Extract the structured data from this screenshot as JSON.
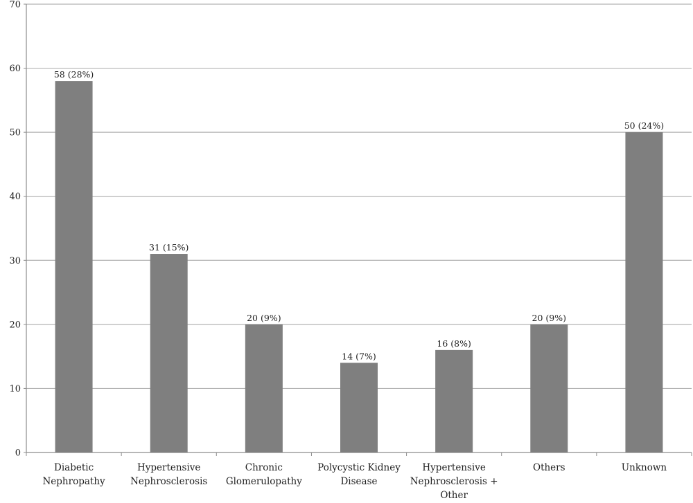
{
  "chart_data": {
    "type": "bar",
    "categories": [
      [
        "Diabetic",
        "Nephropathy"
      ],
      [
        "Hypertensive",
        "Nephrosclerosis"
      ],
      [
        "Chronic",
        "Glomerulopathy"
      ],
      [
        "Polycystic Kidney",
        "Disease"
      ],
      [
        "Hypertensive",
        "Nephrosclerosis +",
        "Other"
      ],
      [
        "Others"
      ],
      [
        "Unknown"
      ]
    ],
    "values": [
      58,
      31,
      20,
      14,
      16,
      20,
      50
    ],
    "data_labels": [
      "58 (28%)",
      "31 (15%)",
      "20 (9%)",
      "14 (7%)",
      "16 (8%)",
      "20 (9%)",
      "50 (24%)"
    ],
    "title": "",
    "xlabel": "",
    "ylabel": "",
    "ylim": [
      0,
      70
    ],
    "yticks": [
      0,
      10,
      20,
      30,
      40,
      50,
      60,
      70
    ],
    "grid": true,
    "legend": "none",
    "colors": {
      "bar": "#7f7f7f",
      "grid": "#b3b3b3",
      "axis": "#8c8c8c"
    }
  }
}
